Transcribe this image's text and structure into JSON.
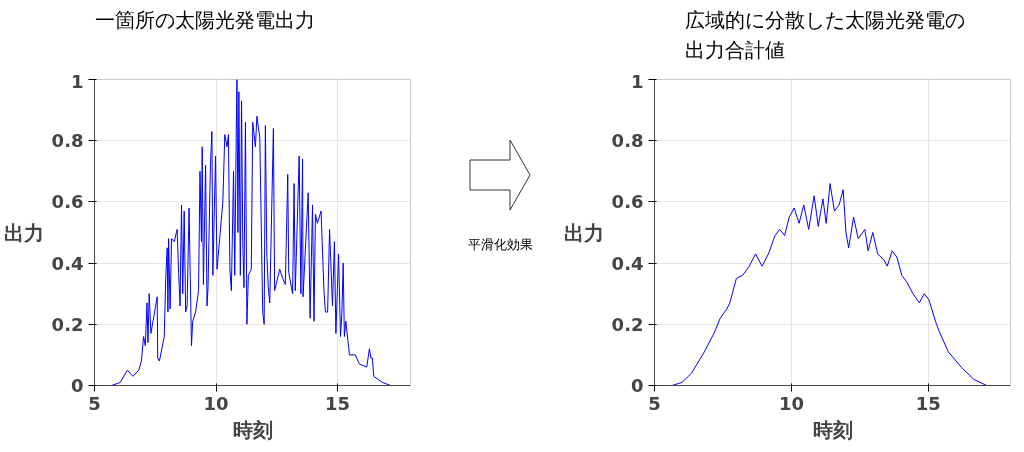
{
  "chart_data": [
    {
      "type": "line",
      "title": "一箇所の太陽光発電出力",
      "xlabel": "時刻",
      "ylabel": "出力",
      "xlim": [
        5,
        18
      ],
      "ylim": [
        0,
        1
      ],
      "xticks": [
        5,
        10,
        15
      ],
      "yticks": [
        0,
        0.2,
        0.4,
        0.6,
        0.8,
        1
      ],
      "grid": true,
      "annotations": [
        "平滑化効果"
      ],
      "series": [
        {
          "color": "#0000ff",
          "x": [
            5.7,
            6.06,
            6.35,
            6.58,
            6.82,
            6.93,
            7.02,
            7.09,
            7.16,
            7.2,
            7.25,
            7.32,
            7.58,
            7.6,
            7.67,
            7.87,
            7.93,
            7.99,
            8.02,
            8.05,
            8.11,
            8.17,
            8.28,
            8.4,
            8.46,
            8.52,
            8.58,
            8.63,
            8.69,
            8.75,
            8.81,
            8.89,
            8.99,
            9.04,
            9.16,
            9.28,
            9.34,
            9.4,
            9.43,
            9.48,
            9.57,
            9.63,
            9.67,
            9.77,
            9.83,
            9.87,
            9.98,
            10.04,
            10.16,
            10.28,
            10.36,
            10.45,
            10.51,
            10.57,
            10.63,
            10.72,
            10.77,
            10.83,
            10.86,
            10.9,
            10.94,
            11.0,
            11.05,
            11.1,
            11.15,
            11.21,
            11.27,
            11.33,
            11.45,
            11.51,
            11.62,
            11.68,
            11.8,
            11.92,
            11.98,
            12.03,
            12.09,
            12.15,
            12.21,
            12.36,
            12.41,
            12.62,
            12.74,
            12.85,
            12.95,
            12.99,
            13.15,
            13.21,
            13.26,
            13.42,
            13.49,
            13.56,
            13.58,
            13.79,
            13.87,
            13.97,
            14.03,
            14.09,
            14.17,
            14.32,
            14.44,
            14.5,
            14.59,
            14.67,
            14.79,
            14.87,
            14.93,
            15.04,
            15.12,
            15.18,
            15.23,
            15.28,
            15.34,
            15.49,
            15.73,
            15.9,
            16.2,
            16.31,
            16.37,
            16.43,
            16.49,
            16.84,
            17.19
          ],
          "values": [
            0,
            0.01,
            0.05,
            0.03,
            0.05,
            0.08,
            0.16,
            0.13,
            0.27,
            0.14,
            0.3,
            0.17,
            0.29,
            0.09,
            0.08,
            0.16,
            0.35,
            0.45,
            0.24,
            0.48,
            0.25,
            0.48,
            0.47,
            0.51,
            0.37,
            0.26,
            0.59,
            0.3,
            0.57,
            0.24,
            0.26,
            0.58,
            0.13,
            0.21,
            0.24,
            0.31,
            0.7,
            0.47,
            0.78,
            0.33,
            0.72,
            0.26,
            0.32,
            0.72,
            0.83,
            0.36,
            0.75,
            0.38,
            0.49,
            0.6,
            0.82,
            0.78,
            0.82,
            0.38,
            0.31,
            0.7,
            0.36,
            0.81,
            1.0,
            0.5,
            0.96,
            0.36,
            0.93,
            0.47,
            0.32,
            0.86,
            0.2,
            0.36,
            0.38,
            0.86,
            0.78,
            0.88,
            0.81,
            0.24,
            0.2,
            0.85,
            0.43,
            0.32,
            0.27,
            0.84,
            0.31,
            0.38,
            0.35,
            0.33,
            0.69,
            0.37,
            0.3,
            0.66,
            0.31,
            0.75,
            0.3,
            0.74,
            0.29,
            0.63,
            0.22,
            0.59,
            0.21,
            0.56,
            0.53,
            0.57,
            0.31,
            0.24,
            0.24,
            0.51,
            0.26,
            0.47,
            0.17,
            0.43,
            0.16,
            0.24,
            0.4,
            0.16,
            0.21,
            0.1,
            0.1,
            0.07,
            0.06,
            0.12,
            0.09,
            0.09,
            0.03,
            0.01,
            0
          ]
        }
      ]
    },
    {
      "type": "line",
      "title": "広域的に分散した太陽光発電の出力合計値",
      "xlabel": "時刻",
      "ylabel": "出力",
      "xlim": [
        5,
        18
      ],
      "ylim": [
        0,
        1
      ],
      "xticks": [
        5,
        10,
        15
      ],
      "yticks": [
        0,
        0.2,
        0.4,
        0.6,
        0.8,
        1
      ],
      "grid": true,
      "series": [
        {
          "color": "#0000ff",
          "x": [
            5.64,
            6.0,
            6.35,
            6.82,
            7.17,
            7.4,
            7.64,
            7.75,
            7.99,
            8.22,
            8.46,
            8.69,
            8.93,
            9.16,
            9.4,
            9.57,
            9.75,
            9.92,
            10.1,
            10.28,
            10.45,
            10.63,
            10.83,
            10.98,
            11.15,
            11.27,
            11.41,
            11.57,
            11.74,
            11.89,
            11.99,
            12.09,
            12.27,
            12.44,
            12.68,
            12.8,
            12.97,
            13.15,
            13.38,
            13.5,
            13.68,
            13.85,
            14.03,
            14.2,
            14.44,
            14.67,
            14.85,
            15.02,
            15.26,
            15.38,
            15.73,
            16.2,
            16.66,
            17.13
          ],
          "values": [
            0,
            0.01,
            0.04,
            0.11,
            0.17,
            0.22,
            0.25,
            0.27,
            0.35,
            0.36,
            0.39,
            0.43,
            0.39,
            0.43,
            0.49,
            0.51,
            0.49,
            0.55,
            0.58,
            0.53,
            0.59,
            0.51,
            0.62,
            0.52,
            0.61,
            0.53,
            0.66,
            0.57,
            0.59,
            0.64,
            0.5,
            0.45,
            0.55,
            0.48,
            0.51,
            0.44,
            0.5,
            0.43,
            0.41,
            0.39,
            0.44,
            0.42,
            0.36,
            0.34,
            0.3,
            0.27,
            0.3,
            0.28,
            0.21,
            0.18,
            0.11,
            0.06,
            0.02,
            0
          ]
        }
      ]
    }
  ]
}
